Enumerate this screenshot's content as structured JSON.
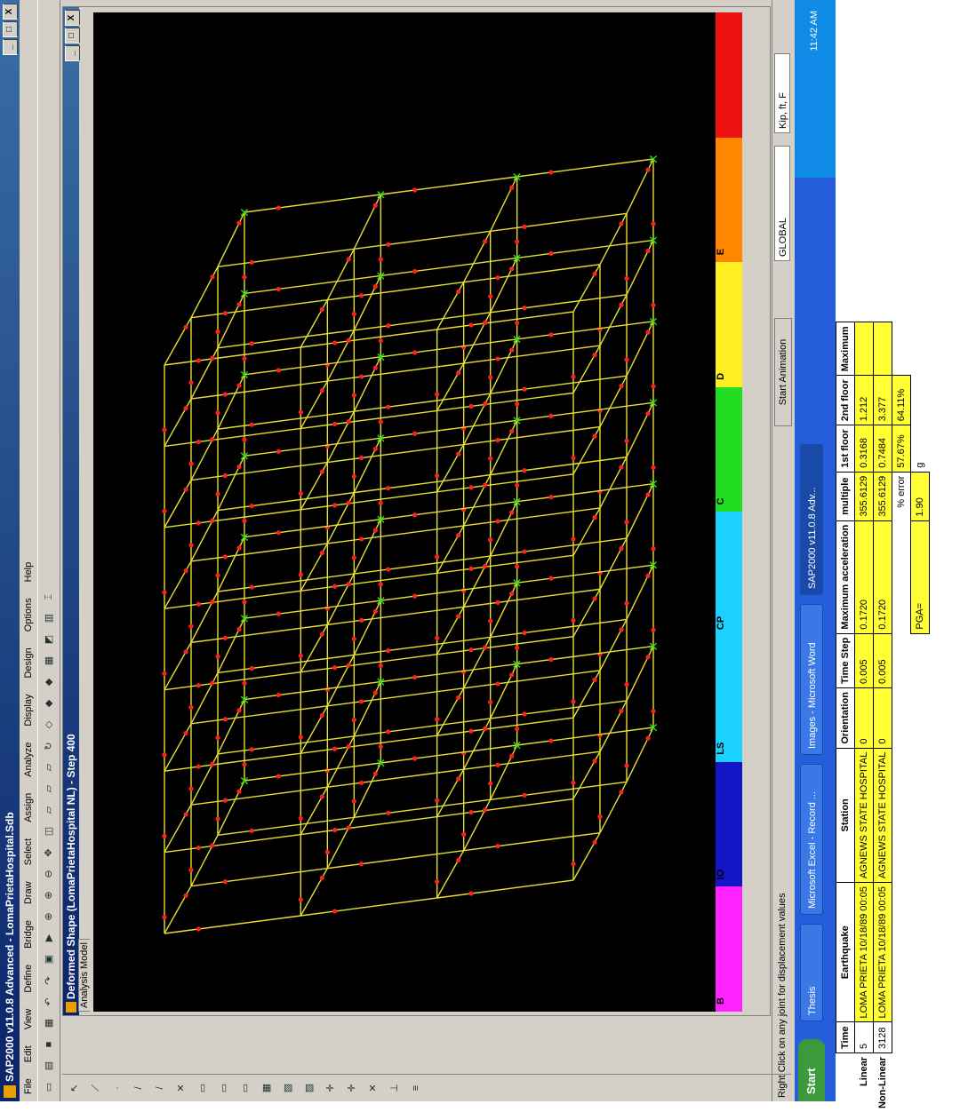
{
  "window": {
    "title": "SAP2000 v11.0.8 Advanced - LomaPrietaHospital.Sdb",
    "controls": [
      "_",
      "□",
      "X"
    ]
  },
  "menu": [
    "File",
    "Edit",
    "View",
    "Define",
    "Bridge",
    "Draw",
    "Select",
    "Assign",
    "Analyze",
    "Display",
    "Design",
    "Options",
    "Help"
  ],
  "subwindow": {
    "title": "Deformed Shape (LomaPrietaHospital NL) - Step 400",
    "tab": "Analysis Model"
  },
  "legend": [
    {
      "label": "B",
      "color": "#ff22ff"
    },
    {
      "label": "IO",
      "color": "#1515c8"
    },
    {
      "label": "LS",
      "color": "#1ad1ff"
    },
    {
      "label": "CP",
      "color": "#1ad1ff"
    },
    {
      "label": "C",
      "color": "#22dd22"
    },
    {
      "label": "D",
      "color": "#ffee22"
    },
    {
      "label": "E",
      "color": "#ff8800"
    },
    {
      "label": "",
      "color": "#ee1111"
    }
  ],
  "status": {
    "message": "Right Click on any joint for displacement values",
    "animation": "Start Animation",
    "coord_system": "GLOBAL",
    "units": "Kip, ft, F"
  },
  "taskbar": {
    "start": "Start",
    "tasks": [
      "Thesis",
      "Microsoft Excel - Record ...",
      "Images - Microsoft Word",
      "SAP2000 v11.0.8 Adv..."
    ],
    "clock": "11:42 AM"
  },
  "sheet": {
    "headers": [
      "Time",
      "Earthquake",
      "Station",
      "Orientation",
      "Time Step",
      "Maximum acceleration",
      "multiple",
      "1st floor",
      "2nd floor"
    ],
    "max_header": "Maximum",
    "rows": [
      {
        "label": "Linear",
        "time": "5",
        "earthquake": "LOMA PRIETA 10/18/89 00:05",
        "station": "AGNEWS STATE HOSPITAL",
        "orientation": "0",
        "time_step": "0.005",
        "max_acc": "0.1720",
        "multiple": "355.6129",
        "floor1": "0.3168",
        "floor2": "1.212"
      },
      {
        "label": "Non-Linear",
        "time": "3128",
        "earthquake": "LOMA PRIETA 10/18/89 00:05",
        "station": "AGNEWS STATE HOSPITAL",
        "orientation": "0",
        "time_step": "0.005",
        "max_acc": "0.1720",
        "multiple": "355.6129",
        "floor1": "0.7484",
        "floor2": "3.377"
      }
    ],
    "error_label": "% error",
    "error_floor1": "57.67%",
    "error_floor2": "64.11%",
    "pga_label": "PGA=",
    "pga_value": "1.90",
    "pga_unit": "g"
  }
}
